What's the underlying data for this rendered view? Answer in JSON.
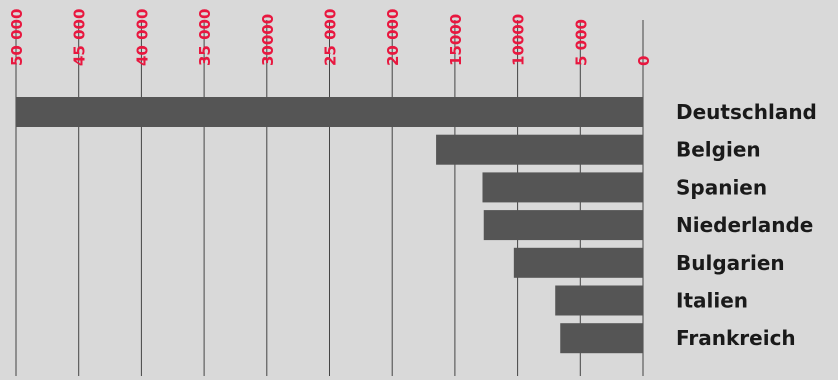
{
  "chart_data": {
    "type": "bar",
    "orientation": "horizontal",
    "x_direction": "reversed",
    "categories": [
      "Deutschland",
      "Belgien",
      "Spanien",
      "Niederlande",
      "Bulgarien",
      "Italien",
      "Frankreich"
    ],
    "values": [
      50000,
      16500,
      12800,
      12700,
      10300,
      7000,
      6600
    ],
    "xlim": [
      0,
      50000
    ],
    "xticks": [
      50000,
      45000,
      40000,
      35000,
      30000,
      25000,
      20000,
      15000,
      10000,
      5000,
      0
    ],
    "xtick_labels": [
      "50 000",
      "45 000",
      "40 000",
      "35 000",
      "30000",
      "25 000",
      "20 000",
      "15000",
      "10000",
      "5 000",
      "0"
    ],
    "grid": true,
    "colors": {
      "background": "#d9d9d9",
      "bar": "#555555",
      "tick_label": "#e8173f",
      "category_label": "#1a1a1a",
      "grid": "#444444"
    }
  }
}
